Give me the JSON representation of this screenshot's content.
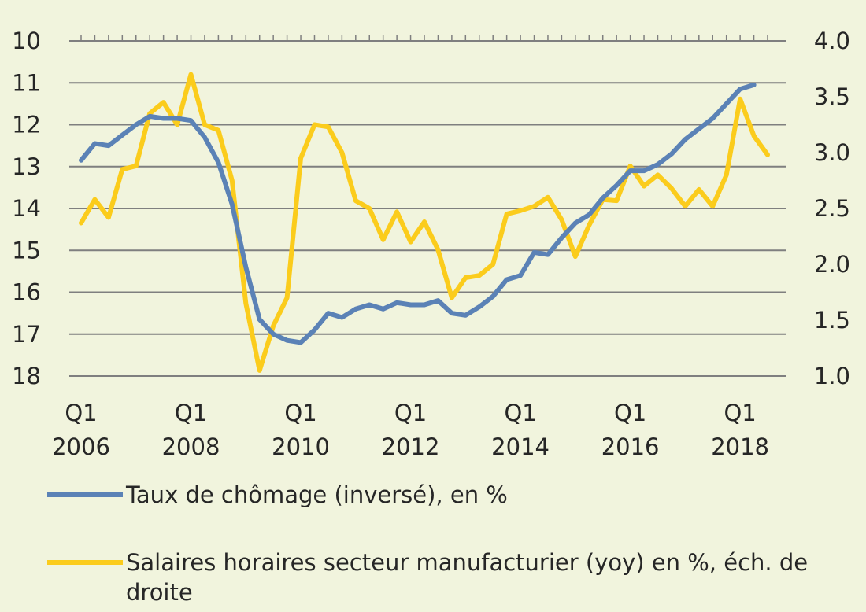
{
  "chart_data": {
    "type": "line",
    "colors": {
      "background": "#f1f4dd",
      "unemployment": "#5b82b6",
      "wages": "#fbcc1c",
      "grid": "#7f7f7f"
    },
    "x": [
      2006.0,
      2006.25,
      2006.5,
      2006.75,
      2007.0,
      2007.25,
      2007.5,
      2007.75,
      2008.0,
      2008.25,
      2008.5,
      2008.75,
      2009.0,
      2009.25,
      2009.5,
      2009.75,
      2010.0,
      2010.25,
      2010.5,
      2010.75,
      2011.0,
      2011.25,
      2011.5,
      2011.75,
      2012.0,
      2012.25,
      2012.5,
      2012.75,
      2013.0,
      2013.25,
      2013.5,
      2013.75,
      2014.0,
      2014.25,
      2014.5,
      2014.75,
      2015.0,
      2015.25,
      2015.5,
      2015.75,
      2016.0,
      2016.25,
      2016.5,
      2016.75,
      2017.0,
      2017.25,
      2017.5,
      2017.75,
      2018.0,
      2018.25,
      2018.5
    ],
    "x_ticks": [
      {
        "value": 2006,
        "line1": "Q1",
        "line2": "2006"
      },
      {
        "value": 2008,
        "line1": "Q1",
        "line2": "2008"
      },
      {
        "value": 2010,
        "line1": "Q1",
        "line2": "2010"
      },
      {
        "value": 2012,
        "line1": "Q1",
        "line2": "2012"
      },
      {
        "value": 2014,
        "line1": "Q1",
        "line2": "2014"
      },
      {
        "value": 2016,
        "line1": "Q1",
        "line2": "2016"
      },
      {
        "value": 2018,
        "line1": "Q1",
        "line2": "2018"
      }
    ],
    "xlim": [
      2006.0,
      2018.5
    ],
    "y_left": {
      "min": 10,
      "max": 18,
      "inverted": true,
      "ticks": [
        "10",
        "11",
        "12",
        "13",
        "14",
        "15",
        "16",
        "17",
        "18"
      ]
    },
    "y_right": {
      "min": 1.0,
      "max": 4.0,
      "ticks": [
        "1.0",
        "1.5",
        "2.0",
        "2.5",
        "3.0",
        "3.5",
        "4.0"
      ]
    },
    "grid": true,
    "legend_position": "bottom",
    "series": [
      {
        "name": "Taux de chômage (inversé), en %",
        "axis": "left",
        "values": [
          12.85,
          12.45,
          12.5,
          12.25,
          12.0,
          11.8,
          11.85,
          11.85,
          11.9,
          12.3,
          12.9,
          13.9,
          15.4,
          16.65,
          17.0,
          17.15,
          17.2,
          16.9,
          16.5,
          16.6,
          16.4,
          16.3,
          16.4,
          16.25,
          16.3,
          16.3,
          16.2,
          16.5,
          16.55,
          16.35,
          16.1,
          15.7,
          15.6,
          15.05,
          15.1,
          14.7,
          14.35,
          14.15,
          13.75,
          13.45,
          13.1,
          13.1,
          12.95,
          12.7,
          12.35,
          12.1,
          11.85,
          11.5,
          11.15,
          11.05,
          null
        ]
      },
      {
        "name": "Salaires horaires secteur manufacturier (yoy) en %, éch. de droite",
        "axis": "right",
        "values": [
          2.37,
          2.58,
          2.42,
          2.85,
          2.88,
          3.35,
          3.45,
          3.25,
          3.7,
          3.25,
          3.2,
          2.75,
          1.65,
          1.05,
          1.45,
          1.7,
          2.95,
          3.25,
          3.23,
          3.0,
          2.57,
          2.5,
          2.22,
          2.47,
          2.2,
          2.38,
          2.13,
          1.7,
          1.88,
          1.9,
          2.0,
          2.45,
          2.48,
          2.52,
          2.6,
          2.4,
          2.07,
          2.35,
          2.58,
          2.57,
          2.88,
          2.7,
          2.8,
          2.68,
          2.52,
          2.67,
          2.52,
          2.8,
          3.48,
          3.15,
          2.98
        ]
      }
    ]
  },
  "legend": [
    {
      "label": "Taux de chômage (inversé), en %"
    },
    {
      "label": "Salaires horaires secteur manufacturier (yoy) en %, éch. de droite"
    }
  ]
}
